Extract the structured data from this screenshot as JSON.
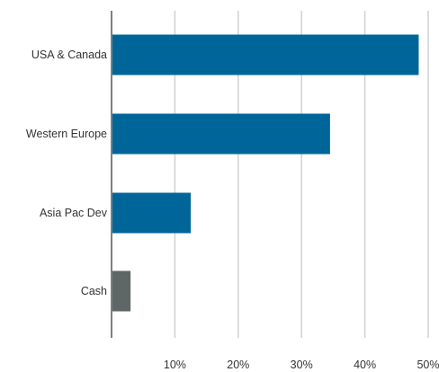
{
  "chart_data": {
    "type": "bar",
    "orientation": "horizontal",
    "categories": [
      "USA & Canada",
      "Western Europe",
      "Asia Pac Dev",
      "Cash"
    ],
    "values": [
      48.5,
      34.5,
      12.5,
      3.0
    ],
    "bar_colors": [
      "#006699",
      "#006699",
      "#006699",
      "#5f6766"
    ],
    "xlim": [
      0,
      50
    ],
    "xticks": [
      10,
      20,
      30,
      40,
      50
    ],
    "xtick_labels": [
      "10%",
      "20%",
      "30%",
      "40%",
      "50%"
    ],
    "grid": true,
    "title": "",
    "xlabel": "",
    "ylabel": ""
  },
  "colors": {
    "grid": "#d0d0d0",
    "axis": "#7f7f7f",
    "text": "#333333"
  }
}
